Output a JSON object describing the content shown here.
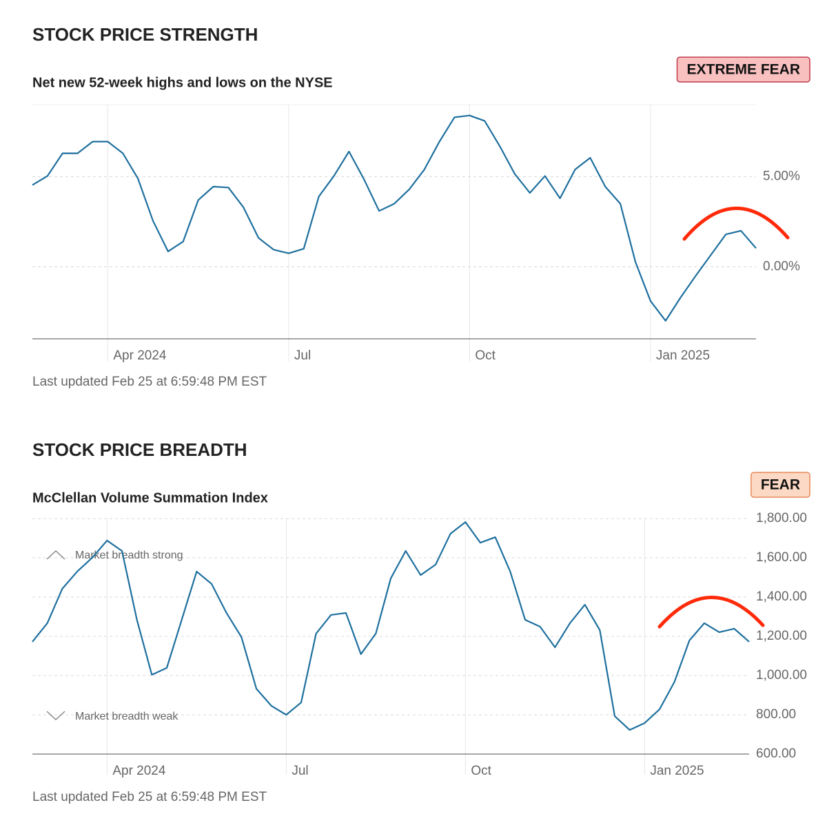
{
  "chart_data": [
    {
      "type": "line",
      "title": "STOCK PRICE STRENGTH",
      "subtitle": "Net new 52-week highs and lows on the NYSE",
      "badge": "EXTREME FEAR",
      "footnote": "Last updated Feb 25 at 6:59:48 PM EST",
      "categories": [
        null,
        null,
        null,
        null,
        null,
        "Apr 2024",
        null,
        null,
        null,
        null,
        null,
        null,
        null,
        null,
        null,
        null,
        null,
        "Jul",
        null,
        null,
        null,
        null,
        null,
        null,
        null,
        null,
        null,
        null,
        null,
        "Oct",
        null,
        null,
        null,
        null,
        null,
        null,
        null,
        null,
        null,
        null,
        null,
        "Jan 2025",
        null,
        null,
        null,
        null,
        null,
        null,
        null
      ],
      "values": [
        4.54,
        5.04,
        6.3,
        6.3,
        6.95,
        6.95,
        6.3,
        4.9,
        2.55,
        0.85,
        1.4,
        3.7,
        4.45,
        4.4,
        3.3,
        1.6,
        0.95,
        0.75,
        1.0,
        3.9,
        5.04,
        6.4,
        4.85,
        3.1,
        3.5,
        4.3,
        5.4,
        6.95,
        8.3,
        8.4,
        8.1,
        6.7,
        5.15,
        4.1,
        5.04,
        3.8,
        5.4,
        6.05,
        4.45,
        3.5,
        0.27,
        -1.9,
        -3.0,
        -1.7,
        -0.5,
        0.65,
        1.8,
        2.0,
        1.03
      ],
      "color": "#1d6f9e",
      "ylim": [
        -4,
        9
      ],
      "yticks": [
        {
          "value": 0,
          "label": "0.00%"
        },
        {
          "value": 5,
          "label": "5.00%"
        }
      ],
      "grid": true
    },
    {
      "type": "line",
      "title": "STOCK PRICE BREADTH",
      "subtitle": "McClellan Volume Summation Index",
      "badge": "FEAR",
      "footnote": "Last updated Feb 25 at 6:59:48 PM EST",
      "annotations": [
        "Market breadth strong",
        "Market breadth weak"
      ],
      "categories": [
        null,
        null,
        null,
        null,
        null,
        "Apr 2024",
        null,
        null,
        null,
        null,
        null,
        null,
        null,
        null,
        null,
        null,
        null,
        "Jul",
        null,
        null,
        null,
        null,
        null,
        null,
        null,
        null,
        null,
        null,
        null,
        "Oct",
        null,
        null,
        null,
        null,
        null,
        null,
        null,
        null,
        null,
        null,
        null,
        "Jan 2025",
        null,
        null,
        null,
        null,
        null,
        null,
        null
      ],
      "values": [
        1172,
        1267,
        1442,
        1530,
        1600,
        1688,
        1635,
        1284,
        1004,
        1039,
        1284,
        1530,
        1467,
        1319,
        1196,
        933,
        846,
        800,
        863,
        1214,
        1309,
        1319,
        1109,
        1214,
        1495,
        1635,
        1512,
        1565,
        1723,
        1782,
        1677,
        1705,
        1530,
        1284,
        1249,
        1144,
        1267,
        1361,
        1232,
        793,
        723,
        758,
        828,
        968,
        1179,
        1267,
        1221,
        1239,
        1172
      ],
      "color": "#1d6f9e",
      "ylim": [
        600,
        1800
      ],
      "yticks": [
        {
          "value": 600,
          "label": "600.00"
        },
        {
          "value": 800,
          "label": "800.00"
        },
        {
          "value": 1000,
          "label": "1,000.00"
        },
        {
          "value": 1200,
          "label": "1,200.00"
        },
        {
          "value": 1400,
          "label": "1,400.00"
        },
        {
          "value": 1600,
          "label": "1,600.00"
        },
        {
          "value": 1800,
          "label": "1,800.00"
        }
      ],
      "grid": true
    }
  ]
}
